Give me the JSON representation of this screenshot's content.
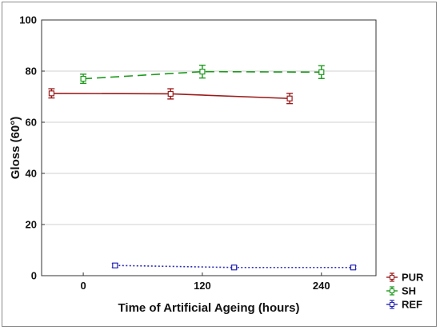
{
  "chart_data": {
    "type": "line",
    "xlabel": "Time of Artificial Ageing (hours)",
    "ylabel": "Gloss (60°)",
    "x_ticks": [
      0,
      120,
      240
    ],
    "y_ticks": [
      0,
      20,
      40,
      60,
      80,
      100
    ],
    "xlim": [
      -42,
      295
    ],
    "ylim": [
      0,
      100
    ],
    "grid": true,
    "legend_position": "bottom-right",
    "series": [
      {
        "name": "PUR",
        "color": "#9b1c1c",
        "dash": "solid",
        "x": [
          -32,
          88,
          208
        ],
        "y": [
          71.3,
          71.1,
          69.3
        ],
        "err": [
          1.8,
          2.0,
          2.0
        ]
      },
      {
        "name": "SH",
        "color": "#1e9a1e",
        "dash": "dashed",
        "x": [
          0,
          120,
          240
        ],
        "y": [
          77.0,
          79.8,
          79.6
        ],
        "err": [
          1.8,
          2.5,
          2.5
        ]
      },
      {
        "name": "REF",
        "color": "#2a2ab8",
        "dash": "dotted",
        "x": [
          32,
          152,
          272
        ],
        "y": [
          4.0,
          3.2,
          3.2
        ],
        "err": [
          0.8,
          0.6,
          0.6
        ]
      }
    ]
  }
}
